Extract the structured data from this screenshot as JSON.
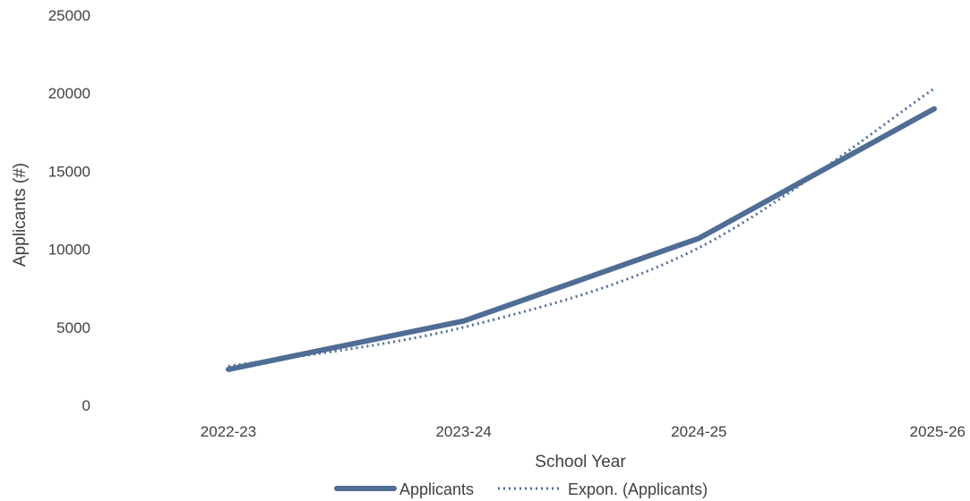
{
  "chart_data": {
    "type": "line",
    "title": "",
    "xlabel": "School Year",
    "ylabel": "Applicants (#)",
    "categories": [
      "2022-23",
      "2023-24",
      "2024-25",
      "2025-26"
    ],
    "ylim": [
      0,
      25000
    ],
    "yticks": [
      "0",
      "5000",
      "10000",
      "15000",
      "20000",
      "25000"
    ],
    "grid": false,
    "legend_position": "bottom",
    "series": [
      {
        "name": "Applicants",
        "values": [
          2300,
          5400,
          10700,
          19000
        ],
        "style": "solid",
        "color": "#4f6d95"
      },
      {
        "name": "Expon. (Applicants)",
        "values": [
          2500,
          5000,
          10100,
          20300
        ],
        "style": "dotted",
        "trendline": "exponential",
        "color": "#4f6d95"
      }
    ]
  }
}
